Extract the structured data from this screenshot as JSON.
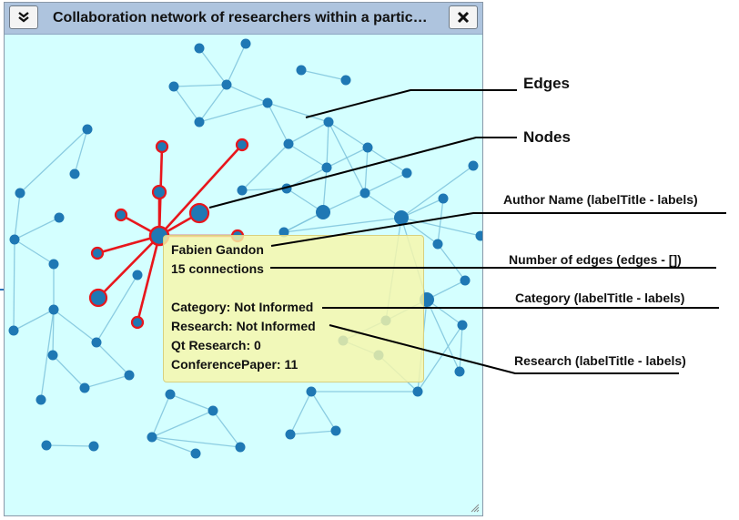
{
  "window": {
    "title": "Collaboration network of researchers within a partic…",
    "collapse_icon": "double-chevron-down-icon",
    "close_icon": "close-x-icon",
    "background": "#d4ffff",
    "titlebar_color": "#aec4de"
  },
  "graph": {
    "node_color": "#1f78b4",
    "edge_color": "#7ec3dc",
    "highlight_color": "#e8161c"
  },
  "tooltip": {
    "author": "Fabien Gandon",
    "connections": "15 connections",
    "category": "Category: Not Informed",
    "research": "Research: Not Informed",
    "qt_research": "Qt Research: 0",
    "conference_paper": "ConferencePaper: 11",
    "background": "#f8f6aa"
  },
  "annotations": {
    "edges": "Edges",
    "nodes": "Nodes",
    "author_name": "Author Name (labelTitle - labels)",
    "number_of_edges": "Number of edges (edges - [])",
    "category": "Category (labelTitle - labels)",
    "research": "Research (labelTitle - labels)"
  }
}
